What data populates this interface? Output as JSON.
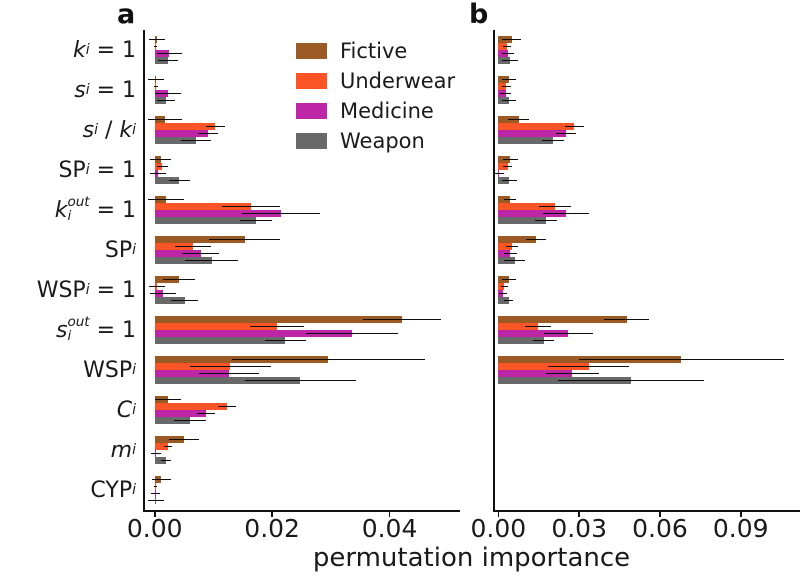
{
  "chart_data": {
    "type": "bar",
    "orientation": "horizontal",
    "xlabel": "permutation importance",
    "grid": false,
    "legend": {
      "position": "upper area of panel a",
      "entries": [
        {
          "name": "Fictive",
          "color": "#9B5A24"
        },
        {
          "name": "Underwear",
          "color": "#FB5426"
        },
        {
          "name": "Medicine",
          "color": "#BE26A8"
        },
        {
          "name": "Weapon",
          "color": "#696969"
        }
      ]
    },
    "categories": [
      {
        "segments": [
          {
            "text": "k",
            "style": "it"
          },
          {
            "text": "i",
            "style": "sub"
          },
          {
            "text": " = 1",
            "style": "up"
          }
        ]
      },
      {
        "segments": [
          {
            "text": "s",
            "style": "it"
          },
          {
            "text": "i",
            "style": "sub"
          },
          {
            "text": " = 1",
            "style": "up"
          }
        ]
      },
      {
        "segments": [
          {
            "text": "s",
            "style": "it"
          },
          {
            "text": "i",
            "style": "sub"
          },
          {
            "text": " / ",
            "style": "up"
          },
          {
            "text": "k",
            "style": "it"
          },
          {
            "text": "i",
            "style": "sub"
          }
        ]
      },
      {
        "segments": [
          {
            "text": "SP",
            "style": "up"
          },
          {
            "text": "i",
            "style": "sub"
          },
          {
            "text": " = 1",
            "style": "up"
          }
        ]
      },
      {
        "segments": [
          {
            "text": "k",
            "style": "it"
          },
          {
            "style": "stack",
            "sup": "out",
            "sub": "i"
          },
          {
            "text": " = 1",
            "style": "up"
          }
        ]
      },
      {
        "segments": [
          {
            "text": "SP",
            "style": "up"
          },
          {
            "text": "i",
            "style": "sub"
          }
        ]
      },
      {
        "segments": [
          {
            "text": "WSP",
            "style": "up"
          },
          {
            "text": "i",
            "style": "sub"
          },
          {
            "text": " = 1",
            "style": "up"
          }
        ]
      },
      {
        "segments": [
          {
            "text": "s",
            "style": "it"
          },
          {
            "style": "stack",
            "sup": "out",
            "sub": "i"
          },
          {
            "text": " = 1",
            "style": "up"
          }
        ]
      },
      {
        "segments": [
          {
            "text": "WSP",
            "style": "up"
          },
          {
            "text": "i",
            "style": "sub"
          }
        ]
      },
      {
        "segments": [
          {
            "text": "C",
            "style": "it"
          },
          {
            "text": "i",
            "style": "sub"
          }
        ]
      },
      {
        "segments": [
          {
            "text": "m",
            "style": "it"
          },
          {
            "text": "i",
            "style": "sub"
          }
        ]
      },
      {
        "segments": [
          {
            "text": "CYP",
            "style": "up"
          },
          {
            "text": "i",
            "style": "sub"
          }
        ]
      }
    ],
    "panels": [
      {
        "title": "a",
        "xlim": [
          -0.002,
          0.052
        ],
        "xticks": [
          0.0,
          0.02,
          0.04
        ],
        "xtick_labels": [
          "0.00",
          "0.02",
          "0.04"
        ],
        "series": [
          {
            "name": "Fictive",
            "values": [
              0.0004,
              0.0002,
              0.0017,
              0.001,
              0.0019,
              0.0153,
              0.0041,
              0.0421,
              0.0296,
              0.0023,
              0.005,
              0.0011
            ],
            "errors": [
              0.0014,
              0.0013,
              0.0029,
              0.0018,
              0.0031,
              0.0061,
              0.0027,
              0.0066,
              0.0165,
              0.0022,
              0.0025,
              0.0016
            ]
          },
          {
            "name": "Underwear",
            "values": [
              0.0001,
              0.0002,
              0.0103,
              0.0013,
              0.0164,
              0.0065,
              0.0004,
              0.0208,
              0.0129,
              0.0123,
              0.0023,
              0.0001
            ],
            "errors": [
              0.0003,
              0.0004,
              0.0016,
              0.001,
              0.005,
              0.003,
              0.0014,
              0.0046,
              0.0069,
              0.0016,
              0.0007,
              0.0003
            ]
          },
          {
            "name": "Medicine",
            "values": [
              0.0025,
              0.0023,
              0.0091,
              0.0006,
              0.0215,
              0.0078,
              0.0014,
              0.0336,
              0.0127,
              0.0087,
              0.0002,
              0.0001
            ],
            "errors": [
              0.0021,
              0.0022,
              0.0017,
              0.0014,
              0.0067,
              0.0031,
              0.0022,
              0.0078,
              0.0051,
              0.0015,
              0.0009,
              0.0008
            ]
          },
          {
            "name": "Weapon",
            "values": [
              0.0023,
              0.0019,
              0.007,
              0.0042,
              0.0173,
              0.0097,
              0.0051,
              0.0222,
              0.0248,
              0.006,
              0.0019,
              0.0002
            ],
            "errors": [
              0.0017,
              0.0015,
              0.0026,
              0.0018,
              0.0027,
              0.0045,
              0.0023,
              0.0035,
              0.0094,
              0.0027,
              0.0009,
              0.0013
            ]
          }
        ]
      },
      {
        "title": "b",
        "xlim": [
          -0.002,
          0.112
        ],
        "xticks": [
          0.0,
          0.03,
          0.06,
          0.09
        ],
        "xtick_labels": [
          "0.00",
          "0.03",
          "0.06",
          "0.09"
        ],
        "series": [
          {
            "name": "Fictive",
            "values": [
              0.005,
              0.004,
              0.0075,
              0.0045,
              0.0044,
              0.014,
              0.0038,
              0.0477,
              0.068,
              0,
              0,
              0
            ],
            "errors": [
              0.0035,
              0.0026,
              0.004,
              0.0028,
              0.0023,
              0.0038,
              0.0026,
              0.0083,
              0.038,
              0,
              0,
              0
            ]
          },
          {
            "name": "Underwear",
            "values": [
              0.0032,
              0.003,
              0.0282,
              0.0035,
              0.021,
              0.005,
              0.0022,
              0.0147,
              0.0335,
              0,
              0,
              0
            ],
            "errors": [
              0.0016,
              0.0017,
              0.0035,
              0.0017,
              0.006,
              0.0022,
              0.0014,
              0.0048,
              0.015,
              0,
              0,
              0
            ]
          },
          {
            "name": "Medicine",
            "values": [
              0.0036,
              0.0027,
              0.025,
              0.0004,
              0.025,
              0.0044,
              0.0017,
              0.026,
              0.0275,
              0,
              0,
              0
            ],
            "errors": [
              0.0022,
              0.002,
              0.0037,
              0.0015,
              0.0086,
              0.0025,
              0.0014,
              0.009,
              0.0097,
              0,
              0,
              0
            ]
          },
          {
            "name": "Weapon",
            "values": [
              0.0043,
              0.004,
              0.0204,
              0.004,
              0.0177,
              0.006,
              0.0038,
              0.0168,
              0.0493,
              0,
              0,
              0
            ],
            "errors": [
              0.003,
              0.0025,
              0.0041,
              0.0028,
              0.004,
              0.0038,
              0.0017,
              0.0038,
              0.027,
              0,
              0,
              0
            ]
          }
        ]
      }
    ]
  }
}
